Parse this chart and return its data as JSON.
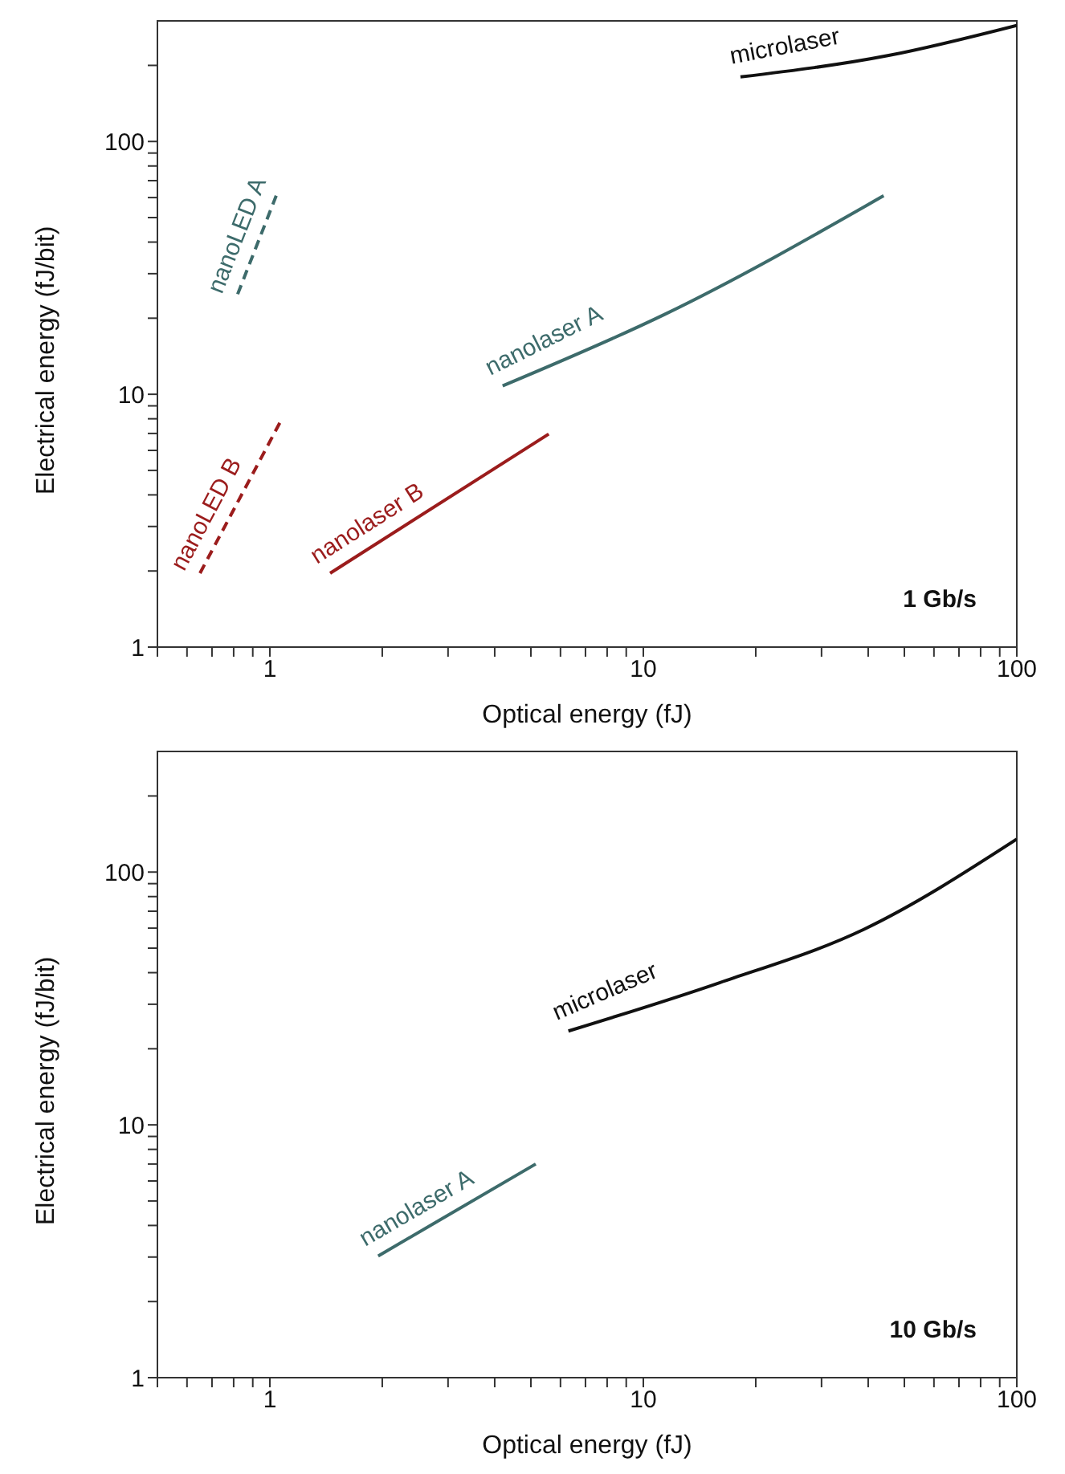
{
  "chart_data": [
    {
      "type": "line",
      "xlabel": "Optical energy (fJ)",
      "ylabel": "Electrical energy (fJ/bit)",
      "log": "xy",
      "marker": "none",
      "tick_labels": "xy",
      "xlim": [
        0.5,
        100
      ],
      "ylim": [
        1,
        300
      ],
      "xticks": [
        {
          "value": 0.5,
          "label": null
        },
        {
          "value": 0.6,
          "label": null
        },
        {
          "value": 0.7,
          "label": null
        },
        {
          "value": 0.8,
          "label": null
        },
        {
          "value": 0.9,
          "label": null
        },
        1,
        {
          "value": 2,
          "label": null
        },
        {
          "value": 3,
          "label": null
        },
        {
          "value": 4,
          "label": null
        },
        {
          "value": 5,
          "label": null
        },
        {
          "value": 6,
          "label": null
        },
        {
          "value": 7,
          "label": null
        },
        {
          "value": 8,
          "label": null
        },
        {
          "value": 9,
          "label": null
        },
        10,
        {
          "value": 20,
          "label": null
        },
        {
          "value": 30,
          "label": null
        },
        {
          "value": 40,
          "label": null
        },
        {
          "value": 50,
          "label": null
        },
        {
          "value": 60,
          "label": null
        },
        {
          "value": 70,
          "label": null
        },
        {
          "value": 80,
          "label": null
        },
        {
          "value": 90,
          "label": null
        },
        100
      ],
      "yticks": [
        1,
        {
          "value": 2,
          "label": null
        },
        {
          "value": 3,
          "label": null
        },
        {
          "value": 4,
          "label": null
        },
        {
          "value": 5,
          "label": null
        },
        {
          "value": 6,
          "label": null
        },
        {
          "value": 7,
          "label": null
        },
        {
          "value": 8,
          "label": null
        },
        {
          "value": 9,
          "label": null
        },
        10,
        {
          "value": 20,
          "label": null
        },
        {
          "value": 30,
          "label": null
        },
        {
          "value": 40,
          "label": null
        },
        {
          "value": 50,
          "label": null
        },
        {
          "value": 60,
          "label": null
        },
        {
          "value": 70,
          "label": null
        },
        {
          "value": 80,
          "label": null
        },
        {
          "value": 90,
          "label": null
        },
        100,
        {
          "value": 200,
          "label": null
        }
      ],
      "annotations": [
        "1 Gb/s"
      ],
      "series": [
        {
          "name": "microlaser",
          "color": "#111111",
          "line_style": "solid",
          "x": [
            18.2,
            45.4,
            100
          ],
          "values": [
            180,
            219,
            288
          ]
        },
        {
          "name": "nanolaser A",
          "color": "#3d6b6b",
          "line_style": "solid",
          "x": [
            4.2,
            11.4,
            44
          ],
          "values": [
            10.8,
            20.7,
            61
          ]
        },
        {
          "name": "nanoLED A",
          "color": "#3d6b6b",
          "line_style": "dashed",
          "x": [
            0.82,
            1.04
          ],
          "values": [
            24.9,
            61
          ]
        },
        {
          "name": "nanolaser B",
          "color": "#9b1c1c",
          "line_style": "solid",
          "x": [
            1.45,
            5.58
          ],
          "values": [
            1.96,
            6.96
          ]
        },
        {
          "name": "nanoLED B",
          "color": "#9b1c1c",
          "line_style": "dashed",
          "x": [
            0.65,
            1.07
          ],
          "values": [
            1.96,
            7.85
          ]
        }
      ]
    },
    {
      "type": "line",
      "xlabel": "Optical energy (fJ)",
      "ylabel": "Electrical energy (fJ/bit)",
      "log": "xy",
      "marker": "none",
      "tick_labels": "xy",
      "xlim": [
        0.5,
        100
      ],
      "ylim": [
        1,
        300
      ],
      "xticks": [
        {
          "value": 0.5,
          "label": null
        },
        {
          "value": 0.6,
          "label": null
        },
        {
          "value": 0.7,
          "label": null
        },
        {
          "value": 0.8,
          "label": null
        },
        {
          "value": 0.9,
          "label": null
        },
        1,
        {
          "value": 2,
          "label": null
        },
        {
          "value": 3,
          "label": null
        },
        {
          "value": 4,
          "label": null
        },
        {
          "value": 5,
          "label": null
        },
        {
          "value": 6,
          "label": null
        },
        {
          "value": 7,
          "label": null
        },
        {
          "value": 8,
          "label": null
        },
        {
          "value": 9,
          "label": null
        },
        10,
        {
          "value": 20,
          "label": null
        },
        {
          "value": 30,
          "label": null
        },
        {
          "value": 40,
          "label": null
        },
        {
          "value": 50,
          "label": null
        },
        {
          "value": 60,
          "label": null
        },
        {
          "value": 70,
          "label": null
        },
        {
          "value": 80,
          "label": null
        },
        {
          "value": 90,
          "label": null
        },
        100
      ],
      "yticks": [
        1,
        {
          "value": 2,
          "label": null
        },
        {
          "value": 3,
          "label": null
        },
        {
          "value": 4,
          "label": null
        },
        {
          "value": 5,
          "label": null
        },
        {
          "value": 6,
          "label": null
        },
        {
          "value": 7,
          "label": null
        },
        {
          "value": 8,
          "label": null
        },
        {
          "value": 9,
          "label": null
        },
        10,
        {
          "value": 20,
          "label": null
        },
        {
          "value": 30,
          "label": null
        },
        {
          "value": 40,
          "label": null
        },
        {
          "value": 50,
          "label": null
        },
        {
          "value": 60,
          "label": null
        },
        {
          "value": 70,
          "label": null
        },
        {
          "value": 80,
          "label": null
        },
        {
          "value": 90,
          "label": null
        },
        100,
        {
          "value": 200,
          "label": null
        }
      ],
      "annotations": [
        "10 Gb/s"
      ],
      "series": [
        {
          "name": "microlaser",
          "color": "#111111",
          "line_style": "solid",
          "x": [
            6.3,
            16.0,
            38.9,
            100
          ],
          "values": [
            23.5,
            36.5,
            59.3,
            135
          ]
        },
        {
          "name": "nanolaser A",
          "color": "#3d6b6b",
          "line_style": "solid",
          "x": [
            1.95,
            5.15
          ],
          "values": [
            3.03,
            7.0
          ]
        }
      ]
    }
  ]
}
